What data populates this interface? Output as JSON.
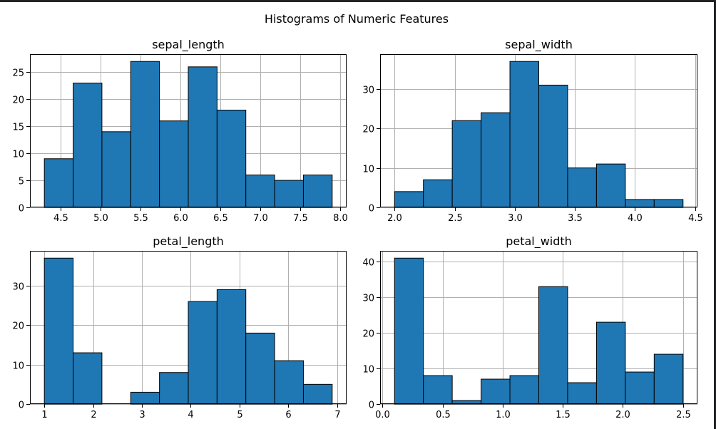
{
  "figure": {
    "title": "Histograms of Numeric Features"
  },
  "colors": {
    "bar_fill": "#1f77b4",
    "bar_edge": "#000000",
    "grid": "#b0b0b0",
    "axis": "#000000",
    "background": "#ffffff",
    "window_border": "#1f2326"
  },
  "chart_data": [
    {
      "type": "bar",
      "title": "sepal_length",
      "xlabel": "",
      "ylabel": "",
      "bin_edges": [
        4.3,
        4.66,
        5.02,
        5.38,
        5.74,
        6.1,
        6.46,
        6.82,
        7.18,
        7.54,
        7.9
      ],
      "values": [
        9,
        23,
        14,
        27,
        16,
        26,
        18,
        6,
        5,
        6
      ],
      "xlim": [
        4.12,
        8.08
      ],
      "ylim": [
        0,
        28.35
      ],
      "xticks": [
        4.5,
        5.0,
        5.5,
        6.0,
        6.5,
        7.0,
        7.5,
        8.0
      ],
      "xtick_labels": [
        "4.5",
        "5.0",
        "5.5",
        "6.0",
        "6.5",
        "7.0",
        "7.5",
        "8.0"
      ],
      "yticks": [
        0,
        5,
        10,
        15,
        20,
        25
      ],
      "ytick_labels": [
        "0",
        "5",
        "10",
        "15",
        "20",
        "25"
      ],
      "grid": true,
      "legend": "none"
    },
    {
      "type": "bar",
      "title": "sepal_width",
      "xlabel": "",
      "ylabel": "",
      "bin_edges": [
        2.0,
        2.24,
        2.48,
        2.72,
        2.96,
        3.2,
        3.44,
        3.68,
        3.92,
        4.16,
        4.4
      ],
      "values": [
        4,
        7,
        22,
        24,
        37,
        31,
        10,
        11,
        2,
        2
      ],
      "xlim": [
        1.88,
        4.52
      ],
      "ylim": [
        0,
        38.85
      ],
      "xticks": [
        2.0,
        2.5,
        3.0,
        3.5,
        4.0,
        4.5
      ],
      "xtick_labels": [
        "2.0",
        "2.5",
        "3.0",
        "3.5",
        "4.0",
        "4.5"
      ],
      "yticks": [
        0,
        10,
        20,
        30
      ],
      "ytick_labels": [
        "0",
        "10",
        "20",
        "30"
      ],
      "grid": true,
      "legend": "none"
    },
    {
      "type": "bar",
      "title": "petal_length",
      "xlabel": "",
      "ylabel": "",
      "bin_edges": [
        1.0,
        1.59,
        2.18,
        2.77,
        3.36,
        3.95,
        4.54,
        5.13,
        5.72,
        6.31,
        6.9
      ],
      "values": [
        37,
        13,
        0,
        3,
        8,
        26,
        29,
        18,
        11,
        5
      ],
      "xlim": [
        0.705,
        7.195
      ],
      "ylim": [
        0,
        38.85
      ],
      "xticks": [
        1,
        2,
        3,
        4,
        5,
        6,
        7
      ],
      "xtick_labels": [
        "1",
        "2",
        "3",
        "4",
        "5",
        "6",
        "7"
      ],
      "yticks": [
        0,
        10,
        20,
        30
      ],
      "ytick_labels": [
        "0",
        "10",
        "20",
        "30"
      ],
      "grid": true,
      "legend": "none"
    },
    {
      "type": "bar",
      "title": "petal_width",
      "xlabel": "",
      "ylabel": "",
      "bin_edges": [
        0.1,
        0.34,
        0.58,
        0.82,
        1.06,
        1.3,
        1.54,
        1.78,
        2.02,
        2.26,
        2.5
      ],
      "values": [
        41,
        8,
        1,
        7,
        8,
        33,
        6,
        23,
        9,
        14
      ],
      "xlim": [
        -0.02,
        2.62
      ],
      "ylim": [
        0,
        43.05
      ],
      "xticks": [
        0.0,
        0.5,
        1.0,
        1.5,
        2.0,
        2.5
      ],
      "xtick_labels": [
        "0.0",
        "0.5",
        "1.0",
        "1.5",
        "2.0",
        "2.5"
      ],
      "yticks": [
        0,
        10,
        20,
        30,
        40
      ],
      "ytick_labels": [
        "0",
        "10",
        "20",
        "30",
        "40"
      ],
      "grid": true,
      "legend": "none"
    }
  ]
}
